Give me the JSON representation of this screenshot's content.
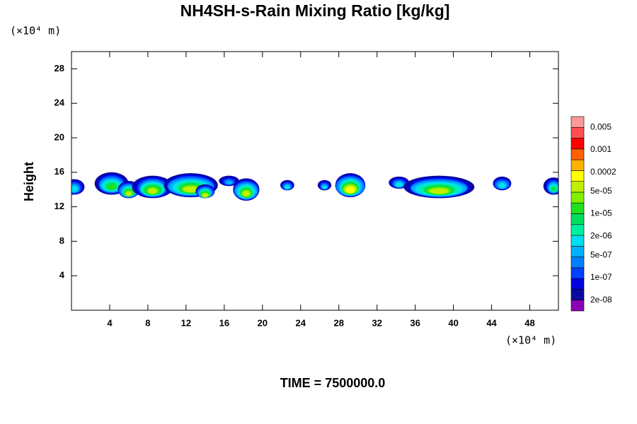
{
  "chart_data": {
    "type": "contour",
    "title": "NH4SH-s-Rain Mixing Ratio [kg/kg]",
    "ylabel": "Height",
    "x_unit": "(×10⁴ m)",
    "y_unit": "(×10⁴ m)",
    "time_label": "TIME = 7500000.0",
    "xlim": [
      0,
      51
    ],
    "ylim": [
      0,
      30
    ],
    "xticks": [
      4,
      8,
      12,
      16,
      20,
      24,
      28,
      32,
      36,
      40,
      44,
      48
    ],
    "yticks": [
      4,
      8,
      12,
      16,
      20,
      24,
      28
    ],
    "colorbar": {
      "colors": [
        "#8a00b4",
        "#0a0aa0",
        "#0000e0",
        "#0040ff",
        "#0080ff",
        "#00b0ff",
        "#00e0f0",
        "#00f0a0",
        "#00e060",
        "#20e020",
        "#80f000",
        "#c0f000",
        "#ffff00",
        "#ffb000",
        "#ff6000",
        "#ff0000",
        "#ff5050",
        "#ff9999"
      ],
      "ticks": [
        {
          "value": 2e-08,
          "label": "2e-08"
        },
        {
          "value": 1e-07,
          "label": "1e-07"
        },
        {
          "value": 5e-07,
          "label": "5e-07"
        },
        {
          "value": 2e-06,
          "label": "2e-06"
        },
        {
          "value": 1e-05,
          "label": "1e-05"
        },
        {
          "value": 5e-05,
          "label": "5e-05"
        },
        0.0002,
        0.001,
        0.005
      ]
    },
    "cells": [
      {
        "x": 0.3,
        "y": 14.3,
        "rx": 1.0,
        "ry": 0.9,
        "peak": 2e-06
      },
      {
        "x": 4.2,
        "y": 14.7,
        "rx": 1.8,
        "ry": 1.3,
        "peak": 1e-05
      },
      {
        "x": 6.0,
        "y": 14.0,
        "rx": 1.2,
        "ry": 1.0,
        "peak": 5e-05
      },
      {
        "x": 8.5,
        "y": 14.3,
        "rx": 2.0,
        "ry": 1.3,
        "peak": 5e-05
      },
      {
        "x": 12.5,
        "y": 14.5,
        "rx": 3.0,
        "ry": 1.4,
        "peak": 5e-05
      },
      {
        "x": 14.0,
        "y": 13.8,
        "rx": 1.0,
        "ry": 0.8,
        "peak": 0.0001
      },
      {
        "x": 16.5,
        "y": 15.0,
        "rx": 1.0,
        "ry": 0.6,
        "peak": 5e-07
      },
      {
        "x": 18.3,
        "y": 14.0,
        "rx": 1.5,
        "ry": 1.3,
        "peak": 5e-05
      },
      {
        "x": 22.6,
        "y": 14.5,
        "rx": 0.7,
        "ry": 0.6,
        "peak": 2e-06
      },
      {
        "x": 26.5,
        "y": 14.5,
        "rx": 0.7,
        "ry": 0.6,
        "peak": 1e-06
      },
      {
        "x": 29.2,
        "y": 14.5,
        "rx": 1.7,
        "ry": 1.4,
        "peak": 0.0002
      },
      {
        "x": 34.3,
        "y": 14.8,
        "rx": 1.0,
        "ry": 0.7,
        "peak": 2e-06
      },
      {
        "x": 38.5,
        "y": 14.3,
        "rx": 3.8,
        "ry": 1.3,
        "peak": 5e-05
      },
      {
        "x": 45.1,
        "y": 14.7,
        "rx": 1.0,
        "ry": 0.8,
        "peak": 2e-06
      },
      {
        "x": 50.5,
        "y": 14.4,
        "rx": 1.0,
        "ry": 1.0,
        "peak": 5e-06
      }
    ]
  }
}
